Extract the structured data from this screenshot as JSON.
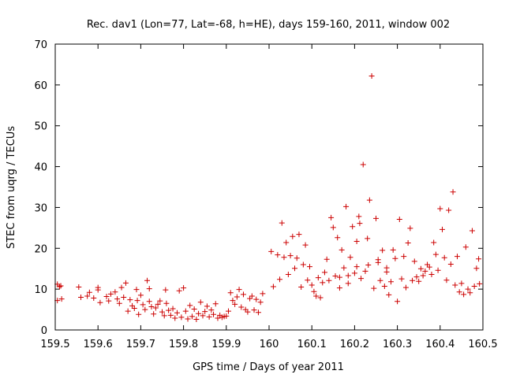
{
  "chart_data": {
    "type": "scatter",
    "title": "Rec. dav1 (Lon=77, Lat=-68, h=HE), days 159-160, 2011, window 002",
    "xlabel": "GPS time / Days of year 2011",
    "ylabel": "STEC from uqrg / TECUs",
    "xlim": [
      159.5,
      160.5
    ],
    "ylim": [
      0,
      70
    ],
    "xticks": [
      "159.5",
      "159.6",
      "159.7",
      "159.8",
      "159.9",
      "160",
      "160.1",
      "160.2",
      "160.3",
      "160.4",
      "160.5"
    ],
    "yticks": [
      "0",
      "10",
      "20",
      "30",
      "40",
      "50",
      "60",
      "70"
    ],
    "grid": false,
    "marker": "+",
    "color": "#cc0000",
    "series": [
      {
        "points": [
          [
            159.505,
            11.2
          ],
          [
            159.51,
            10.6
          ],
          [
            159.505,
            7.2
          ],
          [
            159.515,
            7.6
          ],
          [
            159.513,
            10.8
          ],
          [
            159.555,
            10.5
          ],
          [
            159.56,
            8.0
          ],
          [
            159.575,
            8.3
          ],
          [
            159.58,
            9.2
          ],
          [
            159.59,
            7.8
          ],
          [
            159.6,
            10.4
          ],
          [
            159.6,
            9.8
          ],
          [
            159.605,
            6.7
          ],
          [
            159.62,
            8.2
          ],
          [
            159.625,
            7.1
          ],
          [
            159.63,
            8.8
          ],
          [
            159.64,
            9.3
          ],
          [
            159.645,
            7.6
          ],
          [
            159.65,
            6.5
          ],
          [
            159.655,
            10.4
          ],
          [
            159.66,
            8.0
          ],
          [
            159.665,
            11.5
          ],
          [
            159.67,
            4.6
          ],
          [
            159.675,
            7.4
          ],
          [
            159.68,
            5.9
          ],
          [
            159.685,
            5.3
          ],
          [
            159.69,
            9.9
          ],
          [
            159.692,
            7.2
          ],
          [
            159.695,
            3.8
          ],
          [
            159.7,
            8.5
          ],
          [
            159.705,
            6.2
          ],
          [
            159.71,
            5.0
          ],
          [
            159.715,
            12.1
          ],
          [
            159.72,
            7.0
          ],
          [
            159.72,
            10.1
          ],
          [
            159.725,
            5.7
          ],
          [
            159.73,
            3.9
          ],
          [
            159.735,
            5.4
          ],
          [
            159.74,
            6.3
          ],
          [
            159.745,
            7.1
          ],
          [
            159.75,
            4.4
          ],
          [
            159.755,
            3.5
          ],
          [
            159.758,
            9.8
          ],
          [
            159.76,
            6.5
          ],
          [
            159.765,
            4.8
          ],
          [
            159.77,
            3.6
          ],
          [
            159.775,
            5.2
          ],
          [
            159.78,
            2.9
          ],
          [
            159.785,
            4.2
          ],
          [
            159.79,
            9.6
          ],
          [
            159.795,
            3.1
          ],
          [
            159.8,
            10.3
          ],
          [
            159.805,
            4.6
          ],
          [
            159.81,
            2.7
          ],
          [
            159.815,
            6.0
          ],
          [
            159.82,
            3.3
          ],
          [
            159.825,
            5.1
          ],
          [
            159.83,
            2.6
          ],
          [
            159.835,
            4.0
          ],
          [
            159.84,
            6.8
          ],
          [
            159.845,
            3.5
          ],
          [
            159.85,
            4.5
          ],
          [
            159.855,
            5.8
          ],
          [
            159.86,
            3.2
          ],
          [
            159.865,
            4.9
          ],
          [
            159.87,
            3.8
          ],
          [
            159.875,
            6.4
          ],
          [
            159.88,
            2.9
          ],
          [
            159.885,
            3.6
          ],
          [
            159.89,
            3.1
          ],
          [
            159.895,
            3.3
          ],
          [
            159.9,
            3.4
          ],
          [
            159.905,
            4.6
          ],
          [
            159.91,
            9.1
          ],
          [
            159.915,
            7.2
          ],
          [
            159.92,
            6.3
          ],
          [
            159.925,
            8.1
          ],
          [
            159.93,
            9.9
          ],
          [
            159.935,
            5.6
          ],
          [
            159.94,
            8.7
          ],
          [
            159.945,
            5.0
          ],
          [
            159.95,
            4.4
          ],
          [
            159.955,
            7.7
          ],
          [
            159.96,
            8.3
          ],
          [
            159.965,
            4.9
          ],
          [
            159.97,
            7.5
          ],
          [
            159.975,
            4.3
          ],
          [
            159.98,
            6.8
          ],
          [
            159.985,
            8.9
          ],
          [
            160.005,
            19.2
          ],
          [
            160.01,
            10.6
          ],
          [
            160.02,
            18.4
          ],
          [
            160.025,
            12.4
          ],
          [
            160.03,
            26.2
          ],
          [
            160.035,
            17.8
          ],
          [
            160.04,
            21.4
          ],
          [
            160.045,
            13.6
          ],
          [
            160.05,
            18.2
          ],
          [
            160.055,
            22.9
          ],
          [
            160.06,
            15.1
          ],
          [
            160.065,
            17.6
          ],
          [
            160.07,
            23.4
          ],
          [
            160.075,
            10.5
          ],
          [
            160.08,
            16.0
          ],
          [
            160.085,
            20.8
          ],
          [
            160.09,
            12.2
          ],
          [
            160.095,
            15.5
          ],
          [
            160.1,
            11.0
          ],
          [
            160.105,
            9.4
          ],
          [
            160.11,
            8.3
          ],
          [
            160.115,
            12.8
          ],
          [
            160.12,
            7.9
          ],
          [
            160.125,
            11.6
          ],
          [
            160.13,
            14.1
          ],
          [
            160.135,
            17.3
          ],
          [
            160.14,
            12.1
          ],
          [
            160.145,
            27.5
          ],
          [
            160.15,
            25.1
          ],
          [
            160.155,
            13.2
          ],
          [
            160.16,
            22.6
          ],
          [
            160.165,
            10.3
          ],
          [
            160.17,
            19.6
          ],
          [
            160.175,
            15.2
          ],
          [
            160.18,
            30.2
          ],
          [
            160.185,
            11.4
          ],
          [
            160.19,
            17.8
          ],
          [
            160.195,
            25.3
          ],
          [
            160.2,
            13.9
          ],
          [
            160.205,
            21.7
          ],
          [
            160.21,
            27.8
          ],
          [
            160.212,
            26.1
          ],
          [
            160.215,
            12.6
          ],
          [
            160.22,
            40.5
          ],
          [
            160.225,
            14.4
          ],
          [
            160.23,
            22.4
          ],
          [
            160.232,
            15.9
          ],
          [
            160.235,
            31.8
          ],
          [
            160.24,
            62.2
          ],
          [
            160.245,
            10.2
          ],
          [
            160.25,
            27.3
          ],
          [
            160.255,
            17.2
          ],
          [
            160.26,
            12.1
          ],
          [
            160.265,
            19.5
          ],
          [
            160.27,
            10.7
          ],
          [
            160.275,
            15.2
          ],
          [
            160.28,
            8.6
          ],
          [
            160.285,
            11.8
          ],
          [
            160.29,
            19.6
          ],
          [
            160.295,
            17.5
          ],
          [
            160.3,
            7.0
          ],
          [
            160.305,
            27.1
          ],
          [
            160.31,
            12.5
          ],
          [
            160.315,
            18.0
          ],
          [
            160.32,
            10.4
          ],
          [
            160.325,
            21.3
          ],
          [
            160.33,
            24.9
          ],
          [
            160.335,
            12.1
          ],
          [
            160.34,
            16.8
          ],
          [
            160.345,
            13.0
          ],
          [
            160.35,
            11.9
          ],
          [
            160.355,
            15.0
          ],
          [
            160.36,
            13.3
          ],
          [
            160.365,
            14.4
          ],
          [
            160.37,
            16.0
          ],
          [
            160.375,
            15.4
          ],
          [
            160.38,
            13.6
          ],
          [
            160.385,
            21.4
          ],
          [
            160.39,
            18.5
          ],
          [
            160.395,
            14.6
          ],
          [
            160.4,
            29.7
          ],
          [
            160.405,
            24.6
          ],
          [
            160.41,
            17.7
          ],
          [
            160.415,
            12.2
          ],
          [
            160.42,
            29.3
          ],
          [
            160.425,
            16.1
          ],
          [
            160.43,
            33.8
          ],
          [
            160.435,
            11.0
          ],
          [
            160.44,
            18.0
          ],
          [
            160.445,
            9.3
          ],
          [
            160.45,
            11.4
          ],
          [
            160.455,
            8.7
          ],
          [
            160.46,
            20.3
          ],
          [
            160.465,
            10.0
          ],
          [
            160.47,
            9.1
          ],
          [
            160.475,
            24.3
          ],
          [
            160.48,
            10.7
          ],
          [
            160.485,
            15.1
          ],
          [
            160.49,
            17.4
          ],
          [
            160.492,
            11.3
          ],
          [
            160.255,
            16.5
          ],
          [
            160.185,
            13.3
          ],
          [
            160.165,
            12.9
          ],
          [
            160.205,
            15.5
          ],
          [
            160.275,
            14.2
          ]
        ]
      }
    ]
  }
}
